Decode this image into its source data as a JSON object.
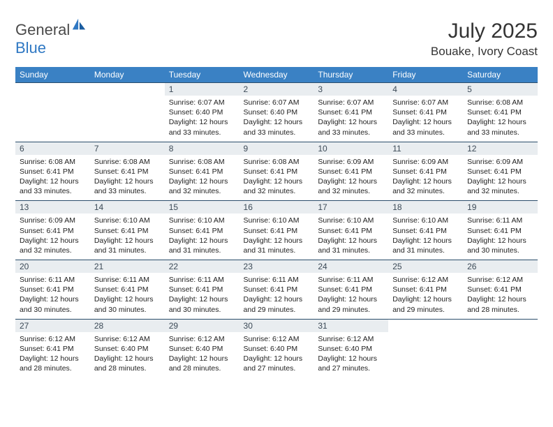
{
  "brand": {
    "word1": "General",
    "word2": "Blue"
  },
  "title": "July 2025",
  "location": "Bouake, Ivory Coast",
  "colors": {
    "header_bg": "#3a81c4",
    "header_text": "#ffffff",
    "daynum_bg": "#e9edf0",
    "daynum_text": "#3c4a57",
    "row_border": "#2b4d6b",
    "brand_gray": "#4a4a4a",
    "brand_blue": "#2f78c3"
  },
  "weekdays": [
    "Sunday",
    "Monday",
    "Tuesday",
    "Wednesday",
    "Thursday",
    "Friday",
    "Saturday"
  ],
  "grid": [
    [
      {
        "empty": true
      },
      {
        "empty": true
      },
      {
        "n": "1",
        "sr": "Sunrise: 6:07 AM",
        "ss": "Sunset: 6:40 PM",
        "d1": "Daylight: 12 hours",
        "d2": "and 33 minutes."
      },
      {
        "n": "2",
        "sr": "Sunrise: 6:07 AM",
        "ss": "Sunset: 6:40 PM",
        "d1": "Daylight: 12 hours",
        "d2": "and 33 minutes."
      },
      {
        "n": "3",
        "sr": "Sunrise: 6:07 AM",
        "ss": "Sunset: 6:41 PM",
        "d1": "Daylight: 12 hours",
        "d2": "and 33 minutes."
      },
      {
        "n": "4",
        "sr": "Sunrise: 6:07 AM",
        "ss": "Sunset: 6:41 PM",
        "d1": "Daylight: 12 hours",
        "d2": "and 33 minutes."
      },
      {
        "n": "5",
        "sr": "Sunrise: 6:08 AM",
        "ss": "Sunset: 6:41 PM",
        "d1": "Daylight: 12 hours",
        "d2": "and 33 minutes."
      }
    ],
    [
      {
        "n": "6",
        "sr": "Sunrise: 6:08 AM",
        "ss": "Sunset: 6:41 PM",
        "d1": "Daylight: 12 hours",
        "d2": "and 33 minutes."
      },
      {
        "n": "7",
        "sr": "Sunrise: 6:08 AM",
        "ss": "Sunset: 6:41 PM",
        "d1": "Daylight: 12 hours",
        "d2": "and 33 minutes."
      },
      {
        "n": "8",
        "sr": "Sunrise: 6:08 AM",
        "ss": "Sunset: 6:41 PM",
        "d1": "Daylight: 12 hours",
        "d2": "and 32 minutes."
      },
      {
        "n": "9",
        "sr": "Sunrise: 6:08 AM",
        "ss": "Sunset: 6:41 PM",
        "d1": "Daylight: 12 hours",
        "d2": "and 32 minutes."
      },
      {
        "n": "10",
        "sr": "Sunrise: 6:09 AM",
        "ss": "Sunset: 6:41 PM",
        "d1": "Daylight: 12 hours",
        "d2": "and 32 minutes."
      },
      {
        "n": "11",
        "sr": "Sunrise: 6:09 AM",
        "ss": "Sunset: 6:41 PM",
        "d1": "Daylight: 12 hours",
        "d2": "and 32 minutes."
      },
      {
        "n": "12",
        "sr": "Sunrise: 6:09 AM",
        "ss": "Sunset: 6:41 PM",
        "d1": "Daylight: 12 hours",
        "d2": "and 32 minutes."
      }
    ],
    [
      {
        "n": "13",
        "sr": "Sunrise: 6:09 AM",
        "ss": "Sunset: 6:41 PM",
        "d1": "Daylight: 12 hours",
        "d2": "and 32 minutes."
      },
      {
        "n": "14",
        "sr": "Sunrise: 6:10 AM",
        "ss": "Sunset: 6:41 PM",
        "d1": "Daylight: 12 hours",
        "d2": "and 31 minutes."
      },
      {
        "n": "15",
        "sr": "Sunrise: 6:10 AM",
        "ss": "Sunset: 6:41 PM",
        "d1": "Daylight: 12 hours",
        "d2": "and 31 minutes."
      },
      {
        "n": "16",
        "sr": "Sunrise: 6:10 AM",
        "ss": "Sunset: 6:41 PM",
        "d1": "Daylight: 12 hours",
        "d2": "and 31 minutes."
      },
      {
        "n": "17",
        "sr": "Sunrise: 6:10 AM",
        "ss": "Sunset: 6:41 PM",
        "d1": "Daylight: 12 hours",
        "d2": "and 31 minutes."
      },
      {
        "n": "18",
        "sr": "Sunrise: 6:10 AM",
        "ss": "Sunset: 6:41 PM",
        "d1": "Daylight: 12 hours",
        "d2": "and 31 minutes."
      },
      {
        "n": "19",
        "sr": "Sunrise: 6:11 AM",
        "ss": "Sunset: 6:41 PM",
        "d1": "Daylight: 12 hours",
        "d2": "and 30 minutes."
      }
    ],
    [
      {
        "n": "20",
        "sr": "Sunrise: 6:11 AM",
        "ss": "Sunset: 6:41 PM",
        "d1": "Daylight: 12 hours",
        "d2": "and 30 minutes."
      },
      {
        "n": "21",
        "sr": "Sunrise: 6:11 AM",
        "ss": "Sunset: 6:41 PM",
        "d1": "Daylight: 12 hours",
        "d2": "and 30 minutes."
      },
      {
        "n": "22",
        "sr": "Sunrise: 6:11 AM",
        "ss": "Sunset: 6:41 PM",
        "d1": "Daylight: 12 hours",
        "d2": "and 30 minutes."
      },
      {
        "n": "23",
        "sr": "Sunrise: 6:11 AM",
        "ss": "Sunset: 6:41 PM",
        "d1": "Daylight: 12 hours",
        "d2": "and 29 minutes."
      },
      {
        "n": "24",
        "sr": "Sunrise: 6:11 AM",
        "ss": "Sunset: 6:41 PM",
        "d1": "Daylight: 12 hours",
        "d2": "and 29 minutes."
      },
      {
        "n": "25",
        "sr": "Sunrise: 6:12 AM",
        "ss": "Sunset: 6:41 PM",
        "d1": "Daylight: 12 hours",
        "d2": "and 29 minutes."
      },
      {
        "n": "26",
        "sr": "Sunrise: 6:12 AM",
        "ss": "Sunset: 6:41 PM",
        "d1": "Daylight: 12 hours",
        "d2": "and 28 minutes."
      }
    ],
    [
      {
        "n": "27",
        "sr": "Sunrise: 6:12 AM",
        "ss": "Sunset: 6:41 PM",
        "d1": "Daylight: 12 hours",
        "d2": "and 28 minutes."
      },
      {
        "n": "28",
        "sr": "Sunrise: 6:12 AM",
        "ss": "Sunset: 6:40 PM",
        "d1": "Daylight: 12 hours",
        "d2": "and 28 minutes."
      },
      {
        "n": "29",
        "sr": "Sunrise: 6:12 AM",
        "ss": "Sunset: 6:40 PM",
        "d1": "Daylight: 12 hours",
        "d2": "and 28 minutes."
      },
      {
        "n": "30",
        "sr": "Sunrise: 6:12 AM",
        "ss": "Sunset: 6:40 PM",
        "d1": "Daylight: 12 hours",
        "d2": "and 27 minutes."
      },
      {
        "n": "31",
        "sr": "Sunrise: 6:12 AM",
        "ss": "Sunset: 6:40 PM",
        "d1": "Daylight: 12 hours",
        "d2": "and 27 minutes."
      },
      {
        "empty": true
      },
      {
        "empty": true
      }
    ]
  ]
}
